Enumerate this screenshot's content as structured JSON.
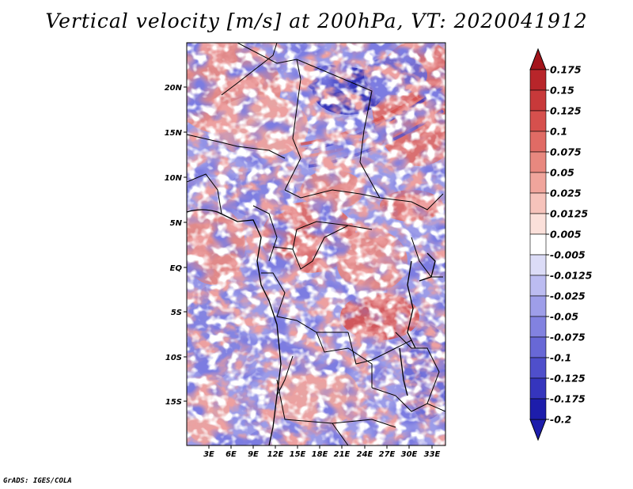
{
  "title": "Vertical velocity [m/s] at 200hPa, VT: 2020041912",
  "credit": "GrADS: IGES/COLA",
  "map": {
    "variable": "Vertical velocity",
    "units": "m/s",
    "level": "200hPa",
    "valid_time": "2020041912",
    "lat_labels": [
      "20N",
      "15N",
      "10N",
      "5N",
      "EQ",
      "5S",
      "10S",
      "15S"
    ],
    "lon_labels": [
      "3E",
      "6E",
      "9E",
      "12E",
      "15E",
      "18E",
      "21E",
      "24E",
      "27E",
      "30E",
      "33E"
    ]
  },
  "colorbar": {
    "levels": [
      {
        "label": "0.175",
        "color": "#a3141b"
      },
      {
        "label": "0.15",
        "color": "#b8252a"
      },
      {
        "label": "0.125",
        "color": "#c8393a"
      },
      {
        "label": "0.1",
        "color": "#d6504d"
      },
      {
        "label": "0.075",
        "color": "#e06b65"
      },
      {
        "label": "0.05",
        "color": "#e8887f"
      },
      {
        "label": "0.025",
        "color": "#f0a59c"
      },
      {
        "label": "0.0125",
        "color": "#f6c3bb"
      },
      {
        "label": "0.005",
        "color": "#fbe0da"
      },
      {
        "label": "-0.005",
        "color": "#ffffff"
      },
      {
        "label": "-0.0125",
        "color": "#dcdcf7"
      },
      {
        "label": "-0.025",
        "color": "#bcbcf1"
      },
      {
        "label": "-0.05",
        "color": "#9e9ee9"
      },
      {
        "label": "-0.075",
        "color": "#8282e0"
      },
      {
        "label": "-0.1",
        "color": "#6868d6"
      },
      {
        "label": "-0.125",
        "color": "#4f4fcb"
      },
      {
        "label": "-0.175",
        "color": "#3535bd"
      },
      {
        "label": "-0.2",
        "color": "#1d1dab"
      }
    ],
    "top_arrow_color": "#a3141b",
    "bottom_arrow_color": "#1d1dab"
  }
}
